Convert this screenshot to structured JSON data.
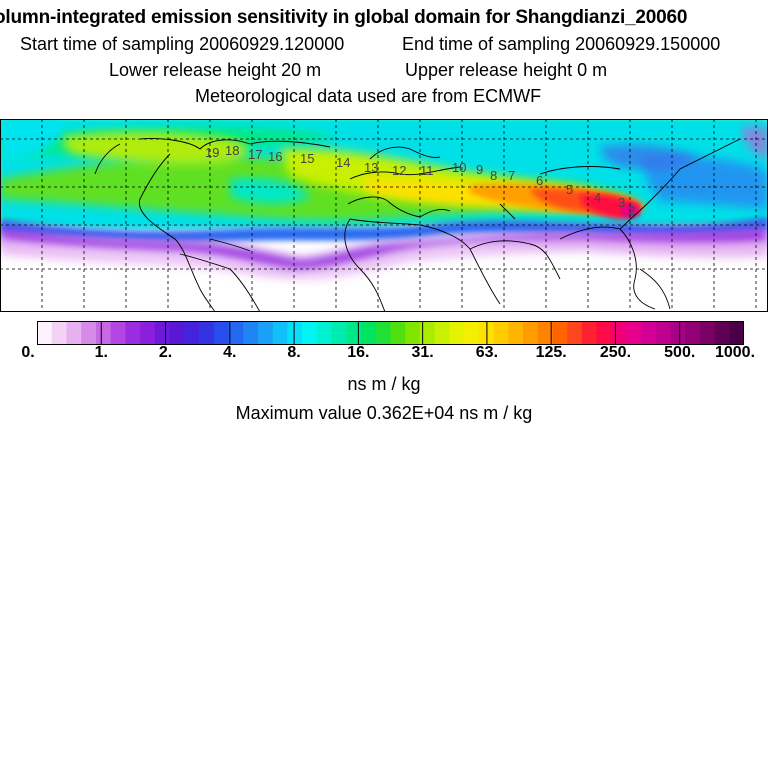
{
  "title": "olumn-integrated emission sensitivity in global domain for Shangdianzi_20060",
  "sampling": {
    "start": "Start time of sampling 20060929.120000",
    "end": "End time of sampling 20060929.150000"
  },
  "release": {
    "lower": "Lower release height   20 m",
    "upper": "Upper release height    0 m"
  },
  "meteo": "Meteorological data used are from ECMWF",
  "colorbar": {
    "tick_labels": [
      "0.",
      "1.",
      "2.",
      "4.",
      "8.",
      "16.",
      "31.",
      "63.",
      "125.",
      "250.",
      "500.",
      "1000."
    ],
    "units": "ns m / kg",
    "colors": [
      "#fdf2fd",
      "#f3d2f6",
      "#e7b0f0",
      "#d88ae8",
      "#c868e4",
      "#b345e2",
      "#9c2cdf",
      "#8a20db",
      "#6b1ad8",
      "#5818d6",
      "#4522dd",
      "#3333e4",
      "#2a4cec",
      "#2468f1",
      "#1f84f4",
      "#1aa0f6",
      "#10c0f8",
      "#05e0fa",
      "#00f4f2",
      "#00f0d2",
      "#00ecaf",
      "#00e888",
      "#00e460",
      "#20e035",
      "#50e010",
      "#80e600",
      "#a8ec00",
      "#c8f000",
      "#e4f200",
      "#f4ee00",
      "#ffe000",
      "#ffcc00",
      "#ffb400",
      "#ff9c00",
      "#ff8200",
      "#ff6400",
      "#ff4420",
      "#ff2030",
      "#ff0a48",
      "#f00074",
      "#e6008c",
      "#d40096",
      "#c00090",
      "#a80086",
      "#920078",
      "#7a0066",
      "#600055",
      "#4a0046"
    ]
  },
  "max_value": "Maximum value  0.362E+04 ns m / kg",
  "map": {
    "trajectory_labels": [
      "19",
      "18",
      "17",
      "16",
      "15",
      "14",
      "13",
      "12",
      "11",
      "10",
      "9",
      "8",
      "7",
      "6",
      "5",
      "4",
      "3",
      "2"
    ]
  }
}
